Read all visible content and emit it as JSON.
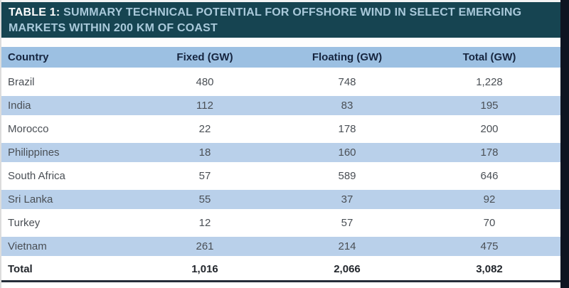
{
  "header_band": {
    "label": "TABLE 1:",
    "line1": "SUMMARY TECHNICAL POTENTIAL FOR OFFSHORE WIND IN SELECT EMERGING",
    "line2": "MARKETS WITHIN 200 KM OF COAST"
  },
  "chart_data": {
    "type": "table",
    "title": "TABLE 1: SUMMARY TECHNICAL POTENTIAL FOR OFFSHORE WIND IN SELECT EMERGING MARKETS WITHIN 200 KM OF COAST",
    "columns": [
      "Country",
      "Fixed (GW)",
      "Floating (GW)",
      "Total (GW)"
    ],
    "rows": [
      [
        "Brazil",
        "480",
        "748",
        "1,228"
      ],
      [
        "India",
        "112",
        "83",
        "195"
      ],
      [
        "Morocco",
        "22",
        "178",
        "200"
      ],
      [
        "Philippines",
        "18",
        "160",
        "178"
      ],
      [
        "South Africa",
        "57",
        "589",
        "646"
      ],
      [
        "Sri Lanka",
        "55",
        "37",
        "92"
      ],
      [
        "Turkey",
        "12",
        "57",
        "70"
      ],
      [
        "Vietnam",
        "261",
        "214",
        "475"
      ]
    ],
    "total_row": [
      "Total",
      "1,016",
      "2,066",
      "3,082"
    ],
    "layout": {
      "stripe_pattern": "alternating",
      "first_data_row": "white",
      "numeric_alignment": "center"
    }
  },
  "colors": {
    "title_bg": "#164451",
    "title_label": "#ffffff",
    "title_text": "#a9c9da",
    "header_bg": "#9cc0e2",
    "header_text": "#16253f",
    "row_alt_bg": "#b9d0ea",
    "row_text": "#4a4f55",
    "total_text": "#23272d",
    "bottom_border": "#252e3a",
    "edge_strip": "#0e1421"
  }
}
